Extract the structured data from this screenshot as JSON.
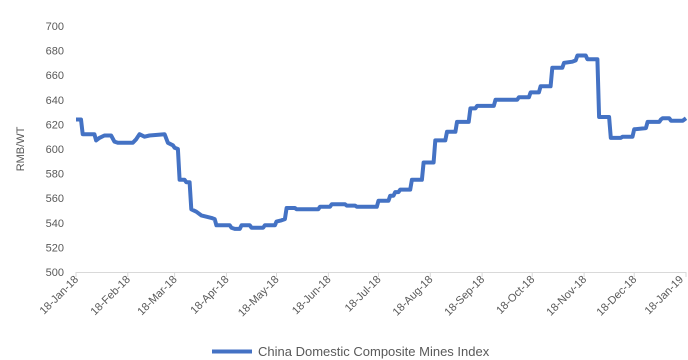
{
  "chart_data": {
    "type": "line",
    "ylabel": "RMB/WT",
    "ylim": [
      500,
      700
    ],
    "y_ticks": [
      500,
      520,
      540,
      560,
      580,
      600,
      620,
      640,
      660,
      680,
      700
    ],
    "xlim": [
      "2018-01-18",
      "2019-01-18"
    ],
    "x_tick_labels": [
      "18-Jan-18",
      "18-Feb-18",
      "18-Mar-18",
      "18-Apr-18",
      "18-May-18",
      "18-Jun-18",
      "18-Jul-18",
      "18-Aug-18",
      "18-Sep-18",
      "18-Oct-18",
      "18-Nov-18",
      "18-Dec-18",
      "18-Jan-19"
    ],
    "grid": false,
    "legend": "bottom",
    "series": [
      {
        "name": "China Domestic Composite Mines Index",
        "color": "#4472c4",
        "x": [
          "2018-01-18",
          "2018-01-21",
          "2018-01-22",
          "2018-01-29",
          "2018-01-30",
          "2018-02-01",
          "2018-02-04",
          "2018-02-08",
          "2018-02-10",
          "2018-02-12",
          "2018-02-21",
          "2018-02-23",
          "2018-02-25",
          "2018-02-28",
          "2018-03-03",
          "2018-03-12",
          "2018-03-14",
          "2018-03-17",
          "2018-03-18",
          "2018-03-20",
          "2018-03-21",
          "2018-03-24",
          "2018-03-25",
          "2018-03-27",
          "2018-03-28",
          "2018-03-31",
          "2018-04-03",
          "2018-04-06",
          "2018-04-09",
          "2018-04-11",
          "2018-04-12",
          "2018-04-20",
          "2018-04-21",
          "2018-04-23",
          "2018-04-26",
          "2018-04-27",
          "2018-05-02",
          "2018-05-03",
          "2018-05-10",
          "2018-05-11",
          "2018-05-17",
          "2018-05-18",
          "2018-05-21",
          "2018-05-23",
          "2018-05-24",
          "2018-05-29",
          "2018-05-30",
          "2018-06-12",
          "2018-06-13",
          "2018-06-19",
          "2018-06-20",
          "2018-06-28",
          "2018-06-29",
          "2018-07-04",
          "2018-07-05",
          "2018-07-17",
          "2018-07-18",
          "2018-07-24",
          "2018-07-25",
          "2018-07-27",
          "2018-07-28",
          "2018-07-30",
          "2018-07-31",
          "2018-08-06",
          "2018-08-07",
          "2018-08-13",
          "2018-08-14",
          "2018-08-20",
          "2018-08-21",
          "2018-08-27",
          "2018-08-28",
          "2018-09-02",
          "2018-09-03",
          "2018-09-10",
          "2018-09-11",
          "2018-09-14",
          "2018-09-15",
          "2018-09-25",
          "2018-09-26",
          "2018-10-09",
          "2018-10-10",
          "2018-10-16",
          "2018-10-17",
          "2018-10-22",
          "2018-10-23",
          "2018-10-29",
          "2018-10-30",
          "2018-11-05",
          "2018-11-06",
          "2018-11-11",
          "2018-11-13",
          "2018-11-14",
          "2018-11-19",
          "2018-11-20",
          "2018-11-26",
          "2018-11-27",
          "2018-12-03",
          "2018-12-04",
          "2018-12-10",
          "2018-12-11",
          "2018-12-17",
          "2018-12-18",
          "2018-12-25",
          "2018-12-26",
          "2019-01-02",
          "2019-01-03",
          "2019-01-04",
          "2019-01-08",
          "2019-01-09",
          "2019-01-16",
          "2019-01-18"
        ],
        "y": [
          624,
          624,
          612,
          612,
          607,
          609,
          611,
          611,
          606,
          605,
          605,
          608,
          612,
          610,
          611,
          612,
          605,
          603,
          601,
          600,
          575,
          575,
          573,
          573,
          551,
          549,
          546,
          545,
          544,
          543,
          538,
          538,
          536,
          535,
          535,
          538,
          538,
          536,
          536,
          538,
          538,
          541,
          542,
          543,
          552,
          552,
          551,
          551,
          553,
          553,
          555,
          555,
          554,
          554,
          553,
          553,
          558,
          558,
          562,
          562,
          565,
          565,
          567,
          567,
          575,
          575,
          589,
          589,
          607,
          607,
          614,
          614,
          622,
          622,
          633,
          633,
          635,
          635,
          640,
          640,
          642,
          642,
          646,
          646,
          651,
          651,
          666,
          666,
          670,
          671,
          672,
          676,
          676,
          673,
          673,
          626,
          626,
          609,
          609,
          610,
          610,
          616,
          617,
          622,
          622,
          624,
          625,
          625,
          623,
          623,
          625
        ]
      }
    ]
  }
}
